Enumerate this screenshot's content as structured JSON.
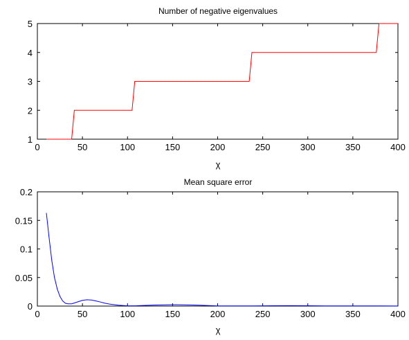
{
  "chart_data": [
    {
      "type": "line",
      "title": "Number of negative eigenvalues",
      "xlabel": "χ",
      "ylabel": "",
      "xlim": [
        0,
        400
      ],
      "ylim": [
        1,
        5
      ],
      "xticks": [
        0,
        50,
        100,
        150,
        200,
        250,
        300,
        350,
        400
      ],
      "yticks": [
        1,
        2,
        3,
        4,
        5
      ],
      "grid": false,
      "series": [
        {
          "color": "#ff0000",
          "x": [
            10,
            38,
            41,
            105,
            108,
            235,
            238,
            376,
            379,
            400
          ],
          "y": [
            1,
            1,
            2,
            2,
            3,
            3,
            4,
            4,
            5,
            5
          ]
        }
      ]
    },
    {
      "type": "line",
      "title": "Mean square error",
      "xlabel": "χ",
      "ylabel": "",
      "xlim": [
        0,
        400
      ],
      "ylim": [
        0,
        0.2
      ],
      "xticks": [
        0,
        50,
        100,
        150,
        200,
        250,
        300,
        350,
        400
      ],
      "yticks": [
        0,
        0.05,
        0.1,
        0.15,
        0.2
      ],
      "grid": false,
      "series": [
        {
          "color": "#0000ff",
          "x": [
            10,
            13,
            16,
            19,
            22,
            25,
            28,
            31,
            34,
            38,
            42,
            46,
            50,
            55,
            60,
            65,
            70,
            75,
            80,
            90,
            100,
            110,
            120,
            130,
            140,
            150,
            160,
            170,
            180,
            190,
            200,
            220,
            240,
            260,
            280,
            300,
            320,
            340,
            360,
            380,
            400
          ],
          "y": [
            0.163,
            0.12,
            0.08,
            0.05,
            0.03,
            0.017,
            0.009,
            0.005,
            0.004,
            0.004,
            0.006,
            0.008,
            0.01,
            0.011,
            0.0105,
            0.009,
            0.007,
            0.005,
            0.0035,
            0.0015,
            0.0005,
            0.0006,
            0.0012,
            0.0018,
            0.0022,
            0.0024,
            0.0023,
            0.002,
            0.0015,
            0.0008,
            0.0003,
            0.0002,
            0.0004,
            0.0006,
            0.0007,
            0.0006,
            0.0004,
            0.0003,
            0.0002,
            0.0002,
            0.0001
          ]
        }
      ]
    }
  ]
}
